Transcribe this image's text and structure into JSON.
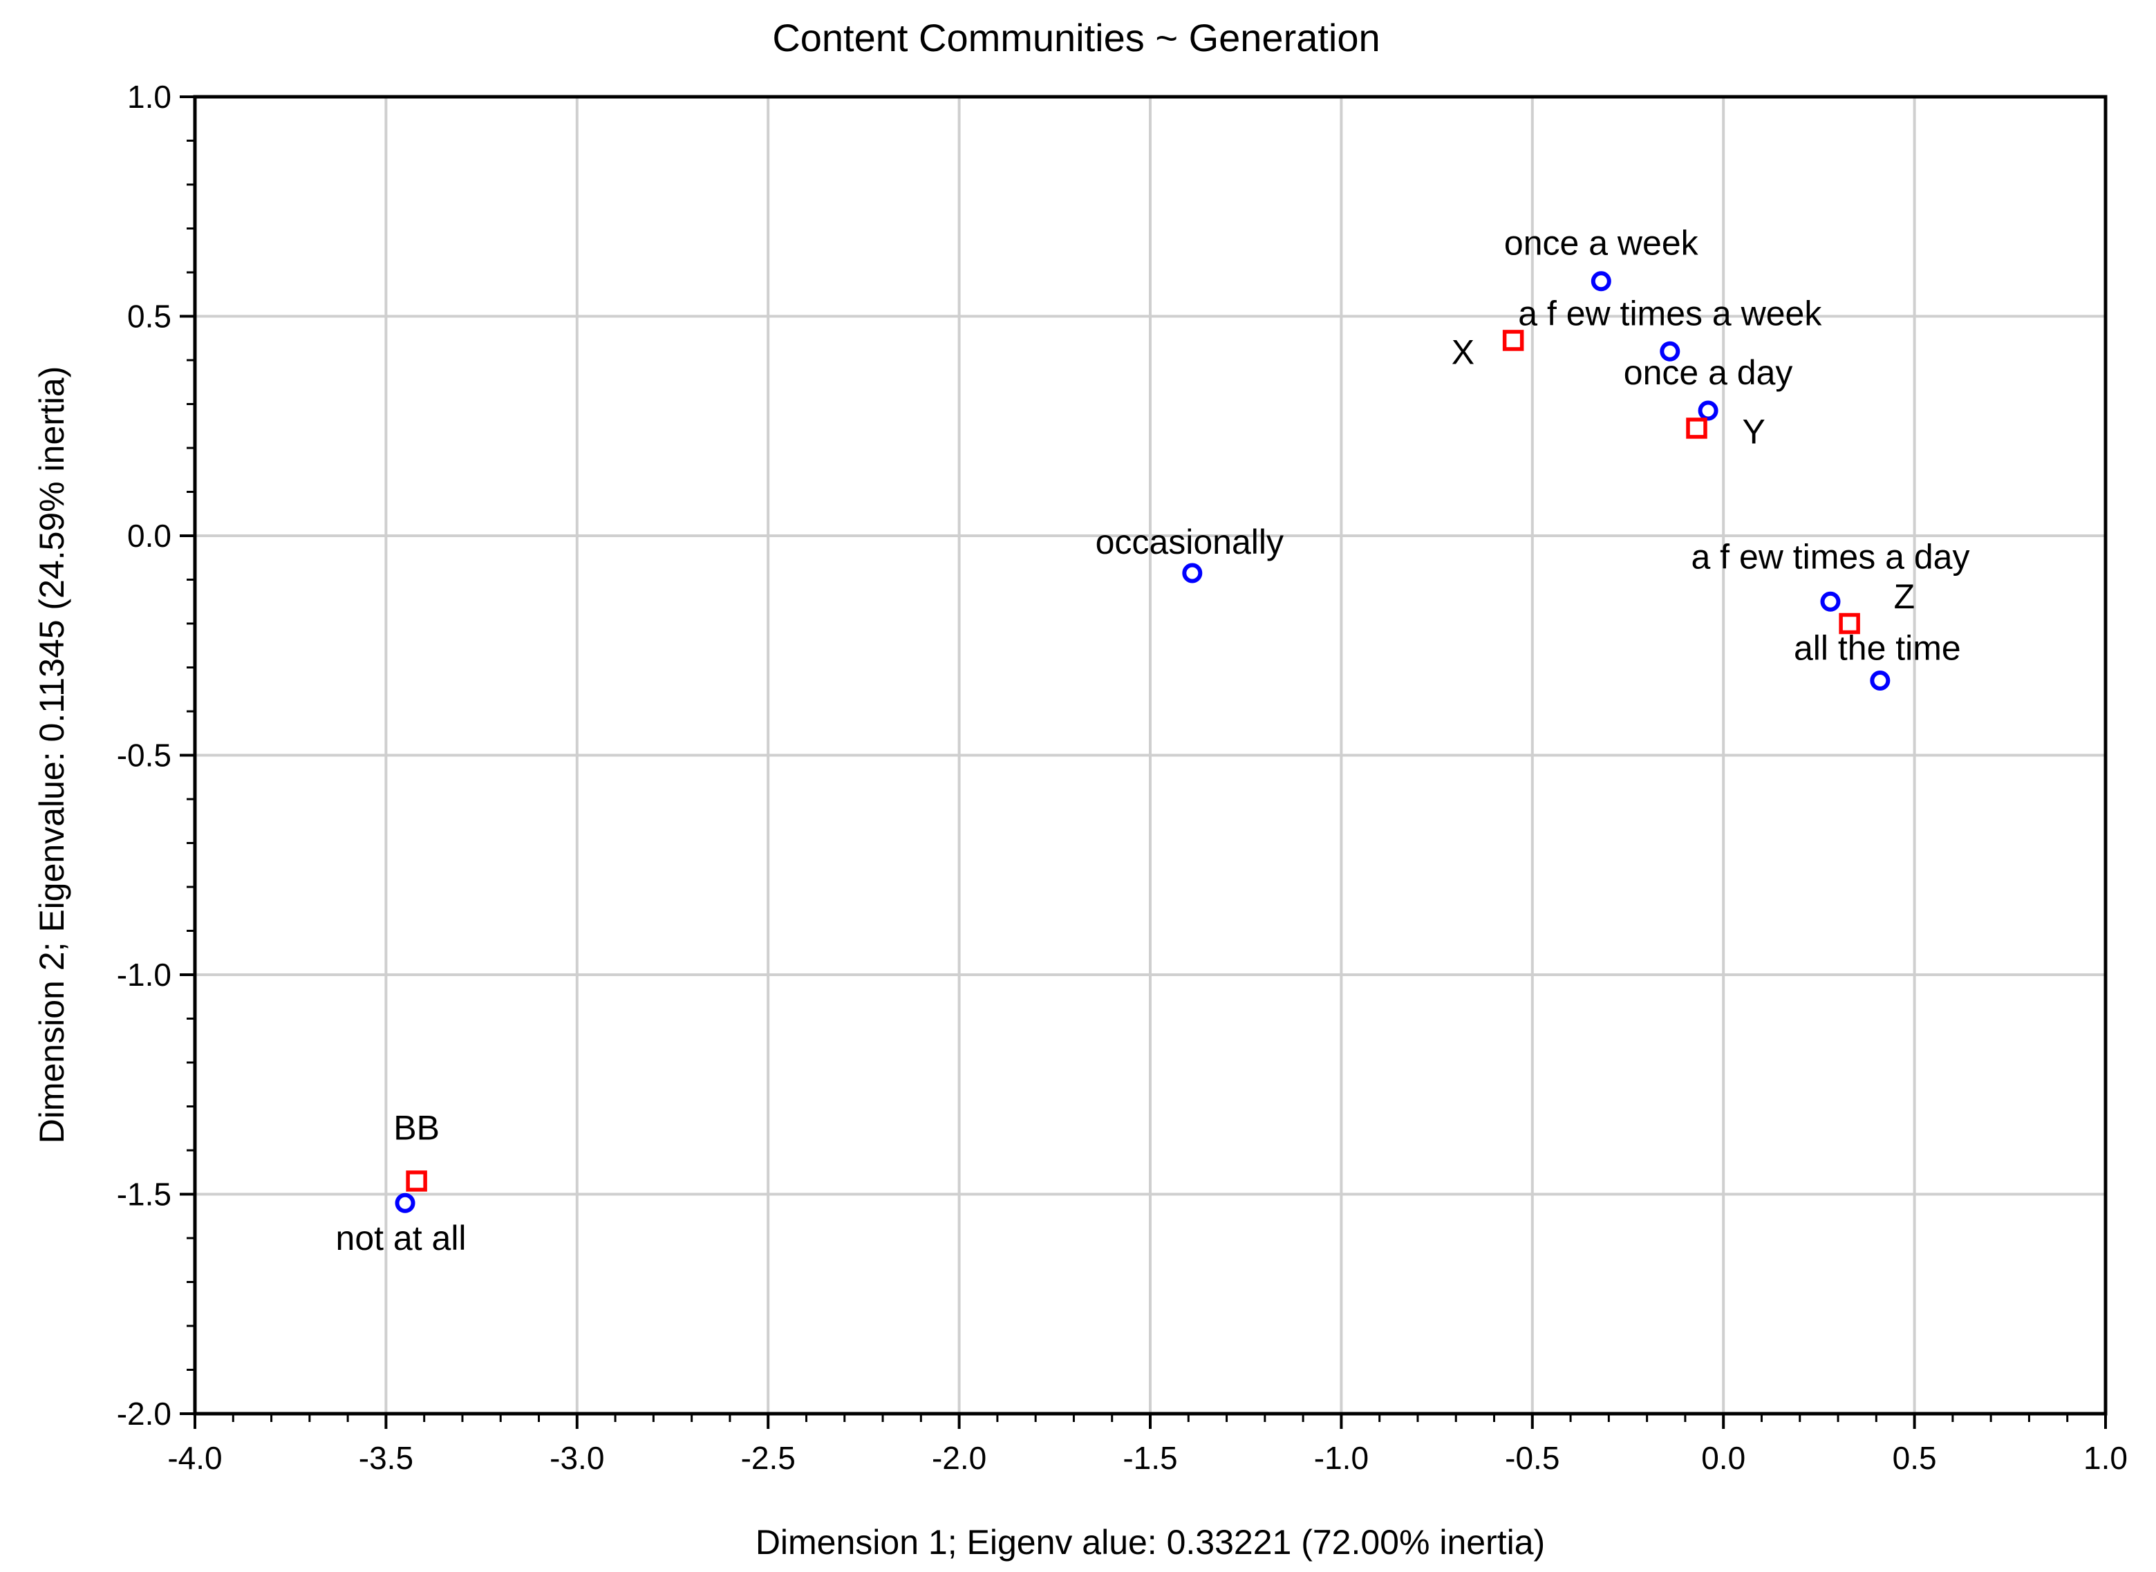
{
  "chart_data": {
    "type": "scatter",
    "title": "Content Communities ~ Generation",
    "xlabel": "Dimension 1; Eigenv alue:  0.33221 (72.00% inertia)",
    "ylabel": "Dimension 2; Eigenvalue: 0.11345 (24.59% inertia)",
    "xlim": [
      -4.0,
      1.0
    ],
    "ylim": [
      -2.0,
      1.0
    ],
    "grid": true,
    "xticks": [
      -4.0,
      -3.5,
      -3.0,
      -2.5,
      -2.0,
      -1.5,
      -1.0,
      -0.5,
      0.0,
      0.5,
      1.0
    ],
    "xtick_labels": [
      "-4.0",
      "-3.5",
      "-3.0",
      "-2.5",
      "-2.0",
      "-1.5",
      "-1.0",
      "-0.5",
      "0.0",
      "0.5",
      "1.0"
    ],
    "yticks": [
      1.0,
      0.5,
      0.0,
      -0.5,
      -1.0,
      -1.5,
      -2.0
    ],
    "ytick_labels": [
      "1.0",
      "0.5",
      "0.0",
      "-0.5",
      "-1.0",
      "-1.5",
      "-2.0"
    ],
    "series": [
      {
        "name": "Content Communities",
        "marker": "circle",
        "color": "#0000ff",
        "points": [
          {
            "label": "once a week",
            "x": -0.32,
            "y": 0.58
          },
          {
            "label": "a f ew times a week",
            "x": -0.14,
            "y": 0.42
          },
          {
            "label": "once a day",
            "x": -0.04,
            "y": 0.285
          },
          {
            "label": "occasionally",
            "x": -1.39,
            "y": -0.085
          },
          {
            "label": "a f ew times a day",
            "x": 0.28,
            "y": -0.15
          },
          {
            "label": "all the time",
            "x": 0.41,
            "y": -0.33
          },
          {
            "label": "not at all",
            "x": -3.45,
            "y": -1.52
          }
        ]
      },
      {
        "name": "Generation",
        "marker": "square",
        "color": "#ff0000",
        "points": [
          {
            "label": "X",
            "x": -0.55,
            "y": 0.445
          },
          {
            "label": "Y",
            "x": -0.07,
            "y": 0.245
          },
          {
            "label": "Z",
            "x": 0.33,
            "y": -0.2
          },
          {
            "label": "BB",
            "x": -3.42,
            "y": -1.47
          }
        ]
      }
    ]
  }
}
